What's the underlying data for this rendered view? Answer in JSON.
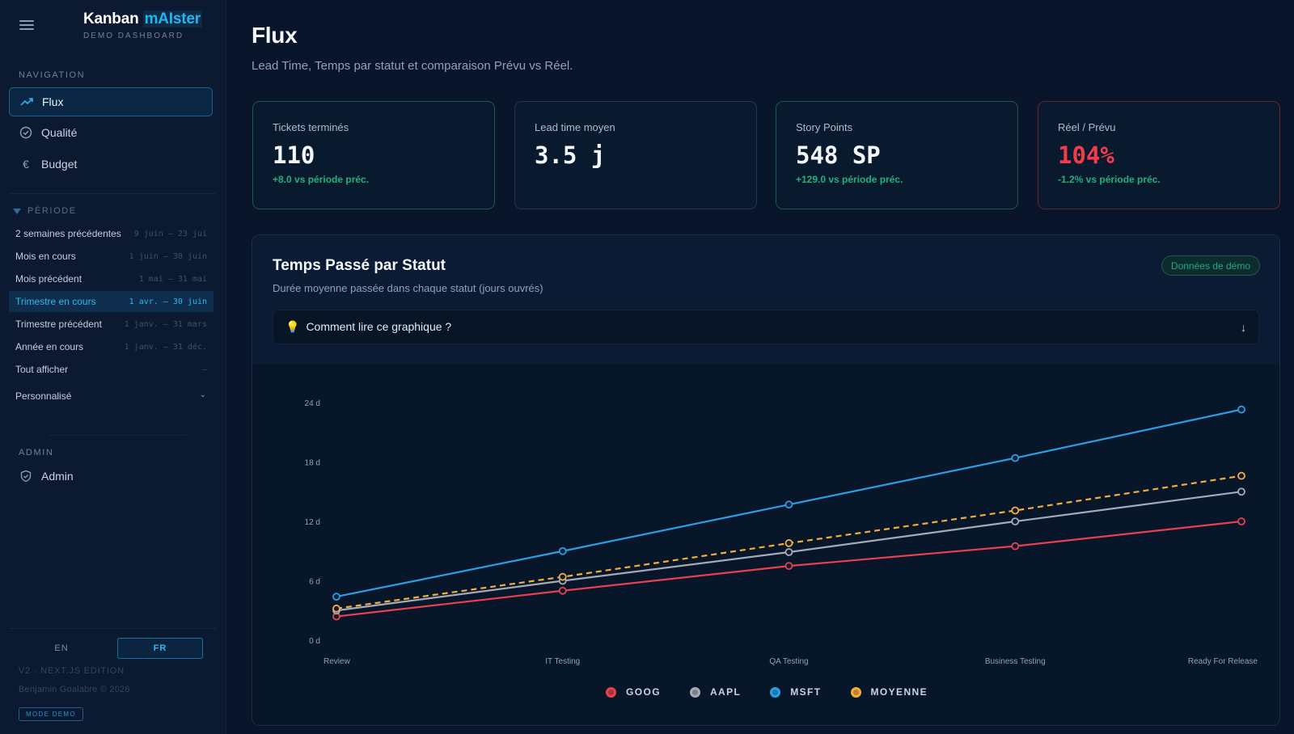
{
  "app": {
    "brand_part1": "Kanban ",
    "brand_part2": "mAIster",
    "subtitle": "DEMO DASHBOARD"
  },
  "sidebar": {
    "navigation_label": "NAVIGATION",
    "nav_items": [
      {
        "label": "Flux",
        "icon": "trend-up-icon",
        "active": true
      },
      {
        "label": "Qualité",
        "icon": "check-circle-icon",
        "active": false
      },
      {
        "label": "Budget",
        "icon": "euro-icon",
        "active": false
      }
    ],
    "period_label": "PÉRIODE",
    "periods": [
      {
        "label": "2 semaines précédentes",
        "range": "9 juin – 23 jui"
      },
      {
        "label": "Mois en cours",
        "range": "1 juin – 30 juin"
      },
      {
        "label": "Mois précédent",
        "range": "1 mai – 31 mai"
      },
      {
        "label": "Trimestre en cours",
        "range": "1 avr. – 30 juin",
        "active": true
      },
      {
        "label": "Trimestre précédent",
        "range": "1 janv. – 31 mars"
      },
      {
        "label": "Année en cours",
        "range": "1 janv. – 31 déc."
      },
      {
        "label": "Tout afficher",
        "range": "–"
      }
    ],
    "custom_label": "Personnalisé",
    "admin_label": "ADMIN",
    "admin_item": "Admin",
    "lang_en": "EN",
    "lang_fr": "FR",
    "version": "V2 · NEXT.JS EDITION",
    "copyright": "Benjamin Goalabre © 2026",
    "demo_mode": "MODE DEMO"
  },
  "page": {
    "title": "Flux",
    "subtitle": "Lead Time, Temps par statut et comparaison Prévu vs Réel."
  },
  "kpis": [
    {
      "label": "Tickets terminés",
      "value": "110",
      "delta": "+8.0 vs période préc."
    },
    {
      "label": "Lead time moyen",
      "value": "3.5 j",
      "delta": ""
    },
    {
      "label": "Story Points",
      "value": "548 SP",
      "delta": "+129.0 vs période préc."
    },
    {
      "label": "Réel / Prévu",
      "value": "104%",
      "delta": "-1.2% vs période préc."
    }
  ],
  "chart_card": {
    "title": "Temps Passé par Statut",
    "subtitle": "Durée moyenne passée dans chaque statut (jours ouvrés)",
    "badge": "Données de démo",
    "howto": "Comment lire ce graphique ?"
  },
  "colors": {
    "accent": "#22b6f0",
    "goog": "#e5414e",
    "aapl": "#a3abb6",
    "msft": "#2a9fe6",
    "moyenne": "#f4ad3d",
    "positive": "#22b07d"
  },
  "chart_data": {
    "type": "line",
    "categories": [
      "Review",
      "IT Testing",
      "QA Testing",
      "Business Testing",
      "Ready For Release"
    ],
    "ylim": [
      0,
      24
    ],
    "yticks": [
      "0 d",
      "6 d",
      "12 d",
      "18 d",
      "24 d"
    ],
    "grid": false,
    "legend_position": "bottom",
    "series": [
      {
        "name": "GOOG",
        "color": "#e5414e",
        "dashed": false,
        "values": [
          2.4,
          5.0,
          7.5,
          9.5,
          12.0
        ]
      },
      {
        "name": "AAPL",
        "color": "#a3abb6",
        "dashed": false,
        "values": [
          3.0,
          6.0,
          8.9,
          12.0,
          15.0
        ]
      },
      {
        "name": "MSFT",
        "color": "#2a9fe6",
        "dashed": false,
        "values": [
          4.4,
          9.0,
          13.7,
          18.4,
          23.3
        ]
      },
      {
        "name": "MOYENNE",
        "color": "#f4ad3d",
        "dashed": true,
        "values": [
          3.2,
          6.4,
          9.8,
          13.1,
          16.6
        ]
      }
    ]
  }
}
